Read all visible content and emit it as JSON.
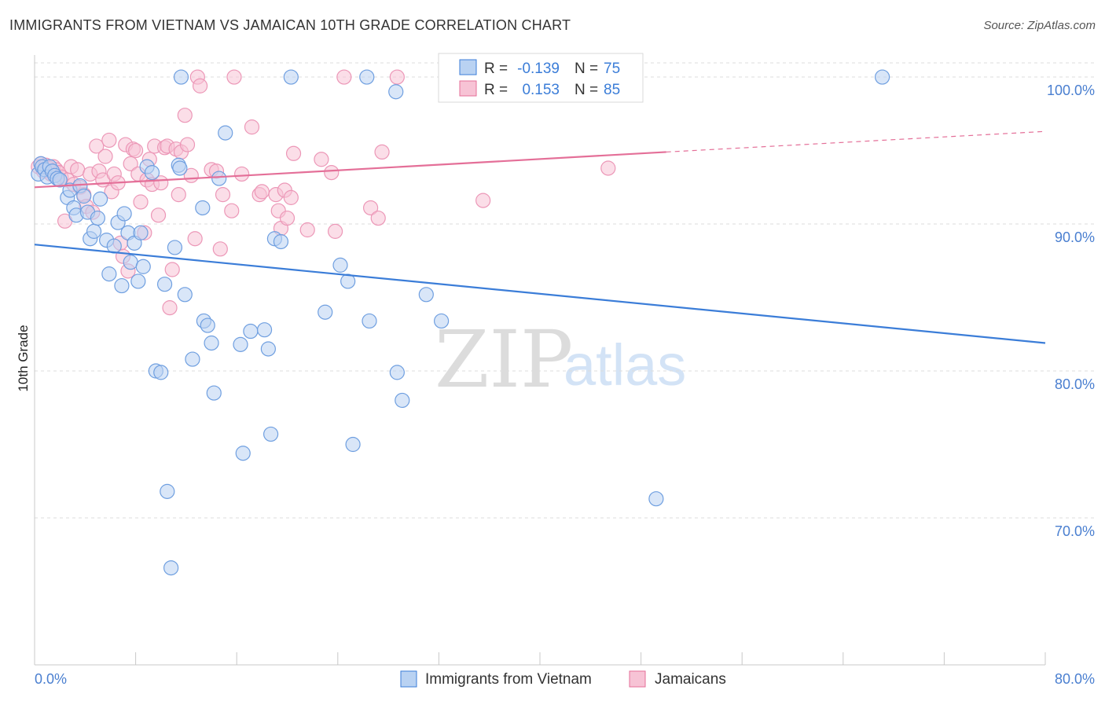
{
  "title": "IMMIGRANTS FROM VIETNAM VS JAMAICAN 10TH GRADE CORRELATION CHART",
  "source": "Source: ZipAtlas.com",
  "watermark": {
    "zip": "ZIP",
    "atlas": "atlas"
  },
  "colors": {
    "blue": "#3b7dd8",
    "pink": "#e46f98",
    "blue_fill": "#b9d2f2",
    "pink_fill": "#f7c3d5"
  },
  "stats": {
    "r_label": "R =",
    "n_label": "N =",
    "rows": [
      {
        "r": "-0.139",
        "n": "75"
      },
      {
        "r": "0.153",
        "n": "85"
      }
    ]
  },
  "chart_data": {
    "type": "scatter",
    "title": "IMMIGRANTS FROM VIETNAM VS JAMAICAN 10TH GRADE CORRELATION CHART",
    "xlabel": "",
    "ylabel": "10th Grade",
    "xlim": [
      0,
      80
    ],
    "ylim": [
      60,
      101.5
    ],
    "x_tick_labels": [
      "0.0%",
      "80.0%"
    ],
    "y_ticks": [
      {
        "value": 100,
        "label": "100.0%"
      },
      {
        "value": 90,
        "label": "90.0%"
      },
      {
        "value": 80,
        "label": "80.0%"
      },
      {
        "value": 70,
        "label": "70.0%"
      }
    ],
    "grid": true,
    "legend_position": "bottom",
    "series": [
      {
        "name": "Immigrants from Vietnam",
        "color": "#3b7dd8",
        "trend": {
          "x": [
            0,
            80
          ],
          "y": [
            88.6,
            81.9
          ]
        },
        "points": [
          [
            0.3,
            93.4
          ],
          [
            0.5,
            94.1
          ],
          [
            0.6,
            93.9
          ],
          [
            0.8,
            93.7
          ],
          [
            1.0,
            93.2
          ],
          [
            1.2,
            93.9
          ],
          [
            1.4,
            93.6
          ],
          [
            1.6,
            93.3
          ],
          [
            1.8,
            93.1
          ],
          [
            2.0,
            93.0
          ],
          [
            2.6,
            91.8
          ],
          [
            2.8,
            92.3
          ],
          [
            3.1,
            91.1
          ],
          [
            3.3,
            90.6
          ],
          [
            3.6,
            92.6
          ],
          [
            3.9,
            91.9
          ],
          [
            4.2,
            90.8
          ],
          [
            4.4,
            89.0
          ],
          [
            4.7,
            89.5
          ],
          [
            5.0,
            90.4
          ],
          [
            5.2,
            91.7
          ],
          [
            5.7,
            88.9
          ],
          [
            5.9,
            86.6
          ],
          [
            6.3,
            88.5
          ],
          [
            6.6,
            90.1
          ],
          [
            6.9,
            85.8
          ],
          [
            7.1,
            90.7
          ],
          [
            7.4,
            89.4
          ],
          [
            7.6,
            87.4
          ],
          [
            7.9,
            88.7
          ],
          [
            8.2,
            86.1
          ],
          [
            8.4,
            89.4
          ],
          [
            8.6,
            87.1
          ],
          [
            8.9,
            93.9
          ],
          [
            9.3,
            93.5
          ],
          [
            9.6,
            80.0
          ],
          [
            10.0,
            79.9
          ],
          [
            10.3,
            85.9
          ],
          [
            10.5,
            71.8
          ],
          [
            10.8,
            66.6
          ],
          [
            11.1,
            88.4
          ],
          [
            11.4,
            94.0
          ],
          [
            11.6,
            100.0
          ],
          [
            11.9,
            85.2
          ],
          [
            12.5,
            80.8
          ],
          [
            13.3,
            91.1
          ],
          [
            13.4,
            83.4
          ],
          [
            13.7,
            83.1
          ],
          [
            14.0,
            81.9
          ],
          [
            14.2,
            78.5
          ],
          [
            14.6,
            93.1
          ],
          [
            15.1,
            96.2
          ],
          [
            16.3,
            81.8
          ],
          [
            16.5,
            74.4
          ],
          [
            17.1,
            82.7
          ],
          [
            18.2,
            82.8
          ],
          [
            18.5,
            81.5
          ],
          [
            18.7,
            75.7
          ],
          [
            19.0,
            89.0
          ],
          [
            19.5,
            88.8
          ],
          [
            20.3,
            100.0
          ],
          [
            23.0,
            84.0
          ],
          [
            24.2,
            87.2
          ],
          [
            24.8,
            86.1
          ],
          [
            25.2,
            75.0
          ],
          [
            26.3,
            100.0
          ],
          [
            26.5,
            83.4
          ],
          [
            28.6,
            99.0
          ],
          [
            28.7,
            79.9
          ],
          [
            29.1,
            78.0
          ],
          [
            31.0,
            85.2
          ],
          [
            32.2,
            83.4
          ],
          [
            49.2,
            71.3
          ],
          [
            67.1,
            100.0
          ],
          [
            11.5,
            93.8
          ]
        ]
      },
      {
        "name": "Jamaicans",
        "color": "#e46f98",
        "trend": {
          "x": [
            0,
            50
          ],
          "y": [
            92.5,
            94.9
          ]
        },
        "trend_dashed": {
          "x": [
            50,
            80
          ],
          "y": [
            94.9,
            96.3
          ]
        },
        "points": [
          [
            0.3,
            93.9
          ],
          [
            0.5,
            94.1
          ],
          [
            0.7,
            93.6
          ],
          [
            0.9,
            94.0
          ],
          [
            1.1,
            93.8
          ],
          [
            1.3,
            93.4
          ],
          [
            1.5,
            93.9
          ],
          [
            1.7,
            93.7
          ],
          [
            1.9,
            93.5
          ],
          [
            2.1,
            93.2
          ],
          [
            2.4,
            90.2
          ],
          [
            2.6,
            93.0
          ],
          [
            2.9,
            93.9
          ],
          [
            3.1,
            92.7
          ],
          [
            3.4,
            93.7
          ],
          [
            3.6,
            92.5
          ],
          [
            3.9,
            92.0
          ],
          [
            4.1,
            91.2
          ],
          [
            4.4,
            93.4
          ],
          [
            4.6,
            90.8
          ],
          [
            4.9,
            95.3
          ],
          [
            5.1,
            93.6
          ],
          [
            5.4,
            93.0
          ],
          [
            5.6,
            94.6
          ],
          [
            5.9,
            95.7
          ],
          [
            6.1,
            92.2
          ],
          [
            6.3,
            93.4
          ],
          [
            6.6,
            92.8
          ],
          [
            6.8,
            88.7
          ],
          [
            7.0,
            87.8
          ],
          [
            7.2,
            95.4
          ],
          [
            7.4,
            86.8
          ],
          [
            7.6,
            94.1
          ],
          [
            7.8,
            95.1
          ],
          [
            8.0,
            95.0
          ],
          [
            8.2,
            93.4
          ],
          [
            8.4,
            91.5
          ],
          [
            8.7,
            89.4
          ],
          [
            8.9,
            93.0
          ],
          [
            9.1,
            94.4
          ],
          [
            9.3,
            92.7
          ],
          [
            9.5,
            95.3
          ],
          [
            9.8,
            90.6
          ],
          [
            10.0,
            92.8
          ],
          [
            10.3,
            95.2
          ],
          [
            10.5,
            95.3
          ],
          [
            10.7,
            84.3
          ],
          [
            10.9,
            86.9
          ],
          [
            11.2,
            95.1
          ],
          [
            11.4,
            92.0
          ],
          [
            11.6,
            94.9
          ],
          [
            11.9,
            97.4
          ],
          [
            12.1,
            95.4
          ],
          [
            12.4,
            93.3
          ],
          [
            12.7,
            89.0
          ],
          [
            12.9,
            100.0
          ],
          [
            13.1,
            99.4
          ],
          [
            14.0,
            93.7
          ],
          [
            14.4,
            93.6
          ],
          [
            14.7,
            88.3
          ],
          [
            14.9,
            92.0
          ],
          [
            15.6,
            90.9
          ],
          [
            15.8,
            100.0
          ],
          [
            16.4,
            93.4
          ],
          [
            17.2,
            96.6
          ],
          [
            17.8,
            92.0
          ],
          [
            18.0,
            92.2
          ],
          [
            19.1,
            92.0
          ],
          [
            19.3,
            90.9
          ],
          [
            19.5,
            89.7
          ],
          [
            19.8,
            92.3
          ],
          [
            20.0,
            90.4
          ],
          [
            20.3,
            91.8
          ],
          [
            20.5,
            94.8
          ],
          [
            21.6,
            89.6
          ],
          [
            22.7,
            94.4
          ],
          [
            23.5,
            93.5
          ],
          [
            23.8,
            89.5
          ],
          [
            24.5,
            100.0
          ],
          [
            26.6,
            91.1
          ],
          [
            27.2,
            90.4
          ],
          [
            27.5,
            94.9
          ],
          [
            28.7,
            100.0
          ],
          [
            35.5,
            91.6
          ],
          [
            45.4,
            93.8
          ]
        ]
      }
    ]
  },
  "legend": [
    {
      "label": "Immigrants from Vietnam"
    },
    {
      "label": "Jamaicans"
    }
  ]
}
